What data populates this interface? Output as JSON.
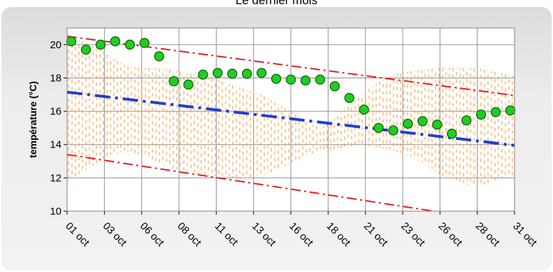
{
  "chart_data": {
    "type": "line",
    "title": "Le dernier mois",
    "ylabel": "température (°C)",
    "xlabel": "",
    "ylim": [
      10,
      21
    ],
    "yticks": [
      10,
      12,
      14,
      16,
      18,
      20
    ],
    "grid": true,
    "x_tick_labels": [
      "01 oct",
      "03 oct",
      "06 oct",
      "08 oct",
      "11 oct",
      "13 oct",
      "16 oct",
      "18 oct",
      "21 oct",
      "23 oct",
      "26 oct",
      "28 oct",
      "31 oct"
    ],
    "series": [
      {
        "kind": "points",
        "color": "#22cc22",
        "values": [
          20.2,
          19.7,
          20.0,
          20.2,
          20.0,
          20.1,
          19.3,
          17.8,
          17.6,
          18.2,
          18.3,
          18.25,
          18.25,
          18.3,
          17.95,
          17.9,
          17.85,
          17.9,
          17.5,
          16.8,
          16.1,
          15.0,
          14.85,
          15.25,
          15.4,
          15.2,
          14.65,
          15.45,
          15.8,
          15.95,
          16.05
        ]
      },
      {
        "kind": "trend",
        "color": "#1f3fd0",
        "values": [
          17.15,
          13.95
        ]
      },
      {
        "kind": "upper-bound",
        "color": "#e81e1e",
        "values": [
          20.5,
          16.95
        ]
      },
      {
        "kind": "lower-bound",
        "color": "#e81e1e",
        "values": [
          13.4,
          9.25
        ]
      },
      {
        "kind": "hatched-band",
        "color": "#f5a040",
        "upper": [
          20.4,
          20.2,
          19.8,
          19.2,
          18.7,
          18.6,
          18.6,
          18.5,
          18.3,
          18.1,
          17.9,
          17.6,
          17.3,
          17.0,
          16.5,
          16.0,
          15.4,
          15.0,
          15.6,
          16.4,
          17.2,
          17.8,
          18.2,
          18.4,
          18.5,
          18.6,
          18.6,
          18.6,
          18.5,
          18.3,
          18.1
        ],
        "lower": [
          11.8,
          12.3,
          12.9,
          13.4,
          13.6,
          13.4,
          13.0,
          12.6,
          12.4,
          12.2,
          12.1,
          12.0,
          12.0,
          12.2,
          12.4,
          12.9,
          13.3,
          13.6,
          13.7,
          13.8,
          13.9,
          13.8,
          13.6,
          13.3,
          12.8,
          12.2,
          11.8,
          11.5,
          11.6,
          11.9,
          12.2
        ]
      }
    ]
  }
}
